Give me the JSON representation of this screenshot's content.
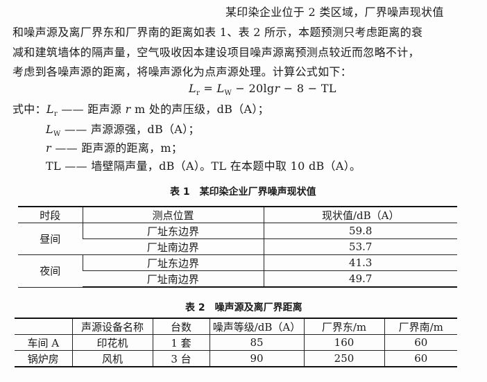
{
  "paragraph": [
    "某印染企业位于 2 类区域，厂界噪声现状值",
    "和噪声源及离厂界东和厂界南的距离如表 1、表 2 所示，本题预测只考虑距离的衰",
    "减和建筑墙体的隔声量，空气吸收因本建设项目噪声源离预测点较近而忽略不计，",
    "考虑到各噪声源的距离，将噪声源化为点声源处理。计算公式如下："
  ],
  "formula": {
    "lhs": "L",
    "lhs_sub": "r",
    "eq": " = ",
    "l2": "L",
    "l2_sub": "W",
    "rest1": " − 20lg",
    "r": "r",
    "rest2": " − 8 − TL"
  },
  "defs": {
    "intro": "式中：",
    "d1": {
      "sym": "L",
      "sub": "r",
      "text1": " —— 距声源 ",
      "r": "r",
      "text2": " m 处的声压级，dB（A）；"
    },
    "d2": {
      "sym": "L",
      "sub": "W",
      "text": " —— 声源源强，dB（A）；"
    },
    "d3": {
      "sym": "r",
      "text": " —— 距声源的距离，m；"
    },
    "d4": {
      "text": "TL —— 墙壁隔声量，dB（A）。TL 在本题中取 10 dB（A）。"
    }
  },
  "table1": {
    "caption": "表 1　某印染企业厂界噪声现状值",
    "headers": [
      "时段",
      "测点位置",
      "现状值/dB（A）"
    ],
    "groups": [
      {
        "period": "昼间",
        "rows": [
          [
            "厂址东边界",
            "59.8"
          ],
          [
            "厂址南边界",
            "53.7"
          ]
        ]
      },
      {
        "period": "夜间",
        "rows": [
          [
            "厂址东边界",
            "41.3"
          ],
          [
            "厂址南边界",
            "49.7"
          ]
        ]
      }
    ]
  },
  "table2": {
    "caption": "表 2　噪声源及离厂界距离",
    "headers": [
      "",
      "声源设备名称",
      "台数",
      "噪声等级/dB（A）",
      "厂界东/m",
      "厂界南/m"
    ],
    "rows": [
      [
        "车间 A",
        "印花机",
        "1 套",
        "85",
        "160",
        "60"
      ],
      [
        "锅炉房",
        "风机",
        "3 台",
        "90",
        "250",
        "60"
      ]
    ]
  }
}
